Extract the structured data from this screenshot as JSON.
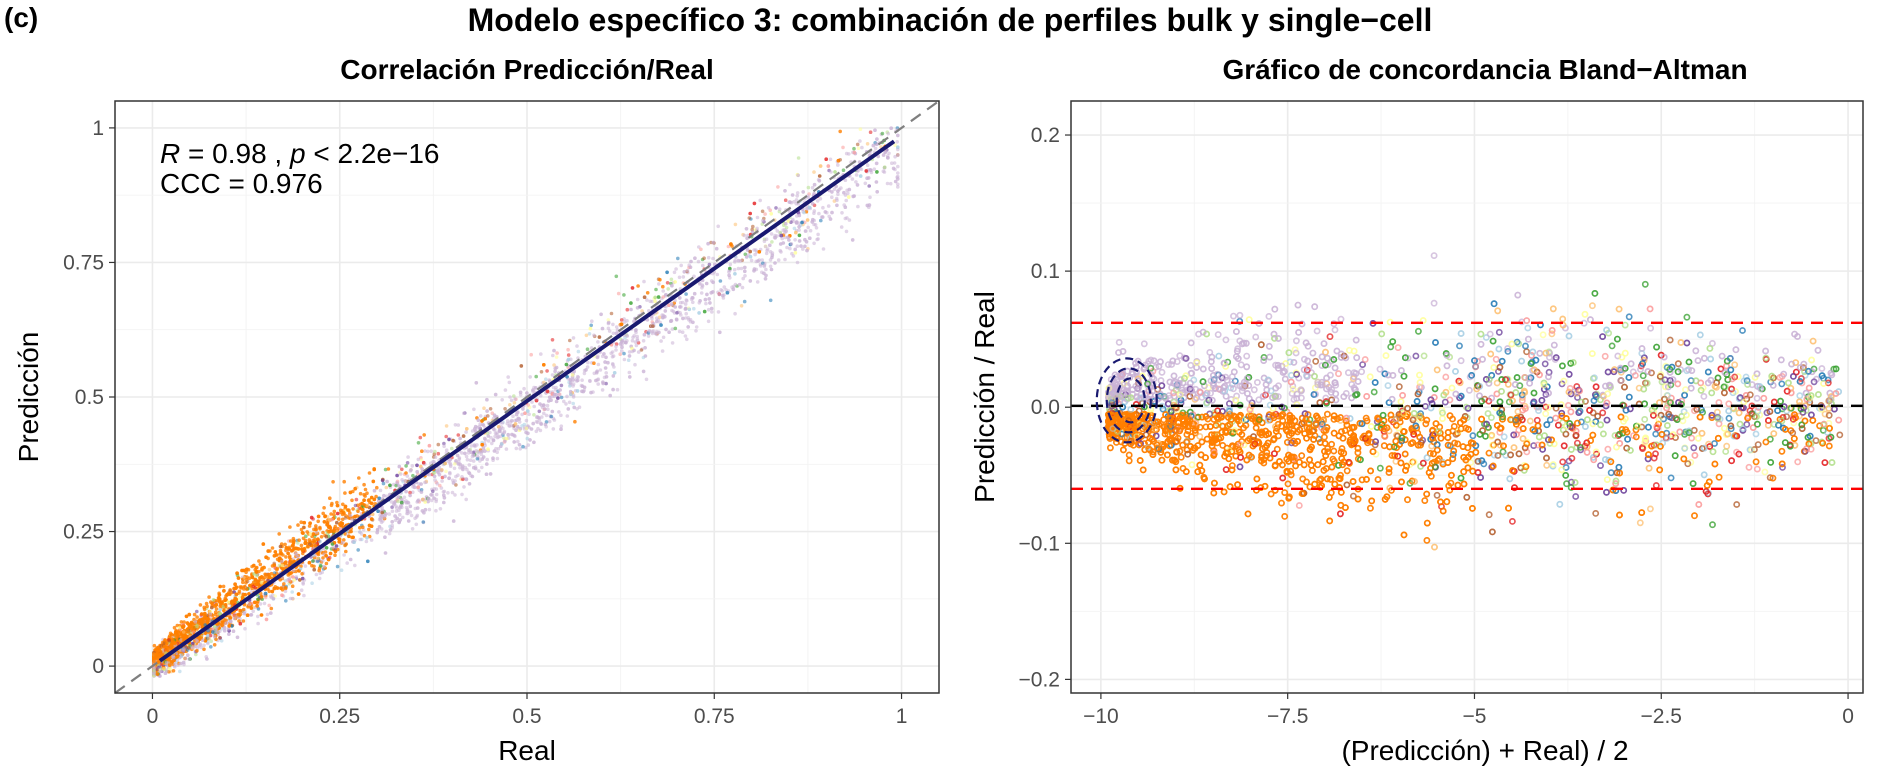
{
  "panel_label": "(c)",
  "main_title": "Modelo específico 3: combinación de perfiles bulk y single−cell",
  "colors": {
    "palette": [
      "#ff7f00",
      "#cab2d6",
      "#e31a1c",
      "#fb9a99",
      "#33a02c",
      "#b2df8a",
      "#1f78b4",
      "#a6cee3",
      "#fdbf6f",
      "#b15928",
      "#6a3d9a",
      "#ffff99"
    ],
    "fit_line": "#191970",
    "identity_line": "#7f7f7f",
    "mean_line": "#000000",
    "limit_line": "#ff0000"
  },
  "chart_data": [
    {
      "type": "scatter",
      "title": "Correlación Predicción/Real",
      "xlabel": "Real",
      "ylabel": "Predicción",
      "xlim": [
        -0.05,
        1.05
      ],
      "ylim": [
        -0.05,
        1.05
      ],
      "xticks": [
        0,
        0.25,
        0.5,
        0.75,
        1
      ],
      "xtick_labels": [
        "0",
        "0.25",
        "0.5",
        "0.75",
        "1"
      ],
      "yticks": [
        0,
        0.25,
        0.5,
        0.75,
        1
      ],
      "ytick_labels": [
        "0",
        "0.25",
        "0.5",
        "0.75",
        "1"
      ],
      "grid": true,
      "annotation": {
        "r_symbol": "R",
        "r_value": " = 0.98 , ",
        "p_symbol": "p",
        "p_value": " < 2.2e−16",
        "ccc": "CCC = 0.976"
      },
      "reference_lines": [
        {
          "kind": "identity",
          "style": "dashed",
          "from": [
            -0.05,
            -0.05
          ],
          "to": [
            1.05,
            1.05
          ]
        },
        {
          "kind": "fit",
          "style": "solid",
          "from": [
            0.01,
            0.01
          ],
          "to": [
            0.99,
            0.975
          ]
        }
      ],
      "point_cloud": {
        "x_range": [
          0,
          1
        ],
        "approx_n": 5000,
        "dense_region": [
          0,
          0.3
        ]
      }
    },
    {
      "type": "scatter",
      "title": "Gráfico de concordancia Bland−Altman",
      "xlabel": "(Predicción) + Real) / 2",
      "ylabel": "Predicción / Real",
      "xlim": [
        -10.4,
        0.2
      ],
      "ylim": [
        -0.21,
        0.225
      ],
      "xticks": [
        -10,
        -7.5,
        -5,
        -2.5,
        0
      ],
      "xtick_labels": [
        "−10",
        "−7.5",
        "−5",
        "−2.5",
        "0"
      ],
      "yticks": [
        -0.2,
        -0.1,
        0,
        0.1,
        0.2
      ],
      "ytick_labels": [
        "−0.2",
        "−0.1",
        "0.0",
        "0.1",
        "0.2"
      ],
      "grid": true,
      "hlines": [
        {
          "kind": "upper_limit",
          "y": 0.062,
          "style": "dashed"
        },
        {
          "kind": "mean",
          "y": 0.001,
          "style": "dashed"
        },
        {
          "kind": "lower_limit",
          "y": -0.06,
          "style": "dashed"
        }
      ],
      "density_contour": {
        "center": [
          -9.6,
          0.005
        ]
      },
      "point_cloud": {
        "x_range": [
          -9.9,
          -0.1
        ],
        "approx_n": 6000
      }
    }
  ]
}
